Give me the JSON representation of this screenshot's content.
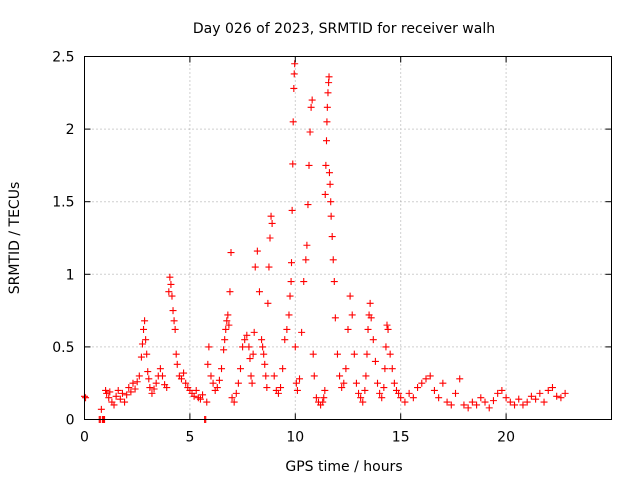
{
  "chart_data": {
    "type": "scatter",
    "title": "Day 026 of 2023, SRMTID for receiver walh",
    "xlabel": "GPS time / hours",
    "ylabel": "SRMTID / TECUs",
    "xlim": [
      0,
      25
    ],
    "ylim": [
      0,
      2.5
    ],
    "xticks": [
      0,
      5,
      10,
      15,
      20
    ],
    "xtick_labels": [
      "0",
      "5",
      "10",
      "15",
      "20"
    ],
    "yticks": [
      0,
      0.5,
      1,
      1.5,
      2,
      2.5
    ],
    "ytick_labels": [
      "0",
      "0.5",
      "1",
      "1.5",
      "2",
      "2.5"
    ],
    "grid": true,
    "marker": "+",
    "series": [
      {
        "name": "walh",
        "color": "#ff0000",
        "x": [
          0.0,
          0.05,
          0.7,
          0.75,
          0.8,
          0.85,
          0.9,
          0.95,
          1.0,
          1.05,
          1.15,
          1.2,
          1.3,
          1.4,
          1.5,
          1.6,
          1.7,
          1.8,
          1.9,
          2.0,
          2.1,
          2.2,
          2.3,
          2.4,
          2.5,
          2.6,
          2.7,
          2.75,
          2.8,
          2.85,
          2.9,
          2.95,
          3.0,
          3.05,
          3.1,
          3.2,
          3.3,
          3.4,
          3.5,
          3.6,
          3.7,
          3.8,
          3.9,
          4.0,
          4.05,
          4.1,
          4.15,
          4.2,
          4.25,
          4.3,
          4.35,
          4.4,
          4.5,
          4.6,
          4.7,
          4.8,
          4.9,
          5.0,
          5.1,
          5.2,
          5.3,
          5.4,
          5.5,
          5.6,
          5.7,
          5.75,
          5.8,
          5.85,
          5.9,
          6.0,
          6.1,
          6.2,
          6.3,
          6.4,
          6.5,
          6.6,
          6.65,
          6.7,
          6.75,
          6.8,
          6.85,
          6.9,
          6.95,
          7.0,
          7.1,
          7.2,
          7.3,
          7.4,
          7.5,
          7.6,
          7.7,
          7.8,
          7.85,
          7.9,
          7.95,
          8.0,
          8.05,
          8.1,
          8.2,
          8.3,
          8.4,
          8.45,
          8.5,
          8.55,
          8.6,
          8.65,
          8.7,
          8.75,
          8.8,
          8.85,
          8.9,
          9.0,
          9.1,
          9.2,
          9.3,
          9.4,
          9.5,
          9.6,
          9.7,
          9.75,
          9.8,
          9.82,
          9.85,
          9.88,
          9.9,
          9.93,
          9.95,
          9.97,
          10.0,
          10.05,
          10.1,
          10.2,
          10.3,
          10.4,
          10.5,
          10.55,
          10.6,
          10.65,
          10.7,
          10.75,
          10.8,
          10.85,
          10.9,
          11.0,
          11.1,
          11.2,
          11.3,
          11.35,
          11.4,
          11.42,
          11.45,
          11.48,
          11.5,
          11.52,
          11.55,
          11.58,
          11.6,
          11.62,
          11.65,
          11.68,
          11.7,
          11.75,
          11.8,
          11.85,
          11.9,
          12.0,
          12.1,
          12.2,
          12.3,
          12.4,
          12.5,
          12.6,
          12.7,
          12.8,
          12.9,
          13.0,
          13.1,
          13.2,
          13.3,
          13.35,
          13.4,
          13.45,
          13.5,
          13.55,
          13.6,
          13.7,
          13.8,
          13.9,
          14.0,
          14.1,
          14.2,
          14.25,
          14.3,
          14.35,
          14.4,
          14.5,
          14.6,
          14.7,
          14.8,
          14.9,
          15.0,
          15.2,
          15.4,
          15.6,
          15.8,
          16.0,
          16.2,
          16.4,
          16.6,
          16.8,
          17.0,
          17.2,
          17.4,
          17.6,
          17.8,
          18.0,
          18.2,
          18.4,
          18.6,
          18.8,
          19.0,
          19.2,
          19.4,
          19.6,
          19.8,
          20.0,
          20.2,
          20.4,
          20.6,
          20.8,
          21.0,
          21.2,
          21.4,
          21.6,
          21.8,
          22.0,
          22.2,
          22.4,
          22.6,
          22.8
        ],
        "y": [
          0.16,
          0.15,
          0.0,
          0.0,
          0.07,
          0.0,
          0.0,
          0.0,
          0.2,
          0.18,
          0.15,
          0.19,
          0.12,
          0.1,
          0.16,
          0.2,
          0.14,
          0.18,
          0.12,
          0.17,
          0.22,
          0.19,
          0.25,
          0.21,
          0.26,
          0.3,
          0.43,
          0.52,
          0.62,
          0.68,
          0.55,
          0.45,
          0.33,
          0.28,
          0.22,
          0.18,
          0.21,
          0.25,
          0.3,
          0.35,
          0.3,
          0.24,
          0.22,
          0.88,
          0.98,
          0.93,
          0.85,
          0.75,
          0.68,
          0.62,
          0.45,
          0.38,
          0.3,
          0.28,
          0.32,
          0.25,
          0.22,
          0.2,
          0.18,
          0.16,
          0.2,
          0.15,
          0.14,
          0.17,
          0.0,
          0.0,
          0.12,
          0.38,
          0.5,
          0.3,
          0.25,
          0.2,
          0.22,
          0.27,
          0.35,
          0.48,
          0.55,
          0.62,
          0.68,
          0.72,
          0.65,
          0.88,
          1.15,
          0.15,
          0.12,
          0.18,
          0.25,
          0.35,
          0.5,
          0.55,
          0.58,
          0.5,
          0.42,
          0.3,
          0.25,
          0.45,
          0.6,
          1.05,
          1.16,
          0.88,
          0.55,
          0.5,
          0.45,
          0.38,
          0.3,
          0.22,
          0.8,
          1.05,
          1.25,
          1.4,
          1.35,
          0.3,
          0.2,
          0.18,
          0.22,
          0.35,
          0.55,
          0.62,
          0.72,
          0.85,
          0.95,
          1.08,
          1.44,
          1.76,
          2.05,
          2.28,
          2.38,
          2.45,
          0.5,
          0.25,
          0.2,
          0.28,
          0.6,
          0.95,
          1.1,
          1.2,
          1.48,
          1.75,
          1.98,
          2.15,
          2.2,
          0.45,
          0.3,
          0.15,
          0.12,
          0.1,
          0.12,
          0.15,
          0.2,
          1.55,
          1.75,
          1.92,
          2.05,
          2.15,
          2.25,
          2.32,
          2.36,
          1.7,
          1.62,
          1.5,
          1.4,
          1.26,
          1.1,
          0.95,
          0.7,
          0.45,
          0.3,
          0.22,
          0.25,
          0.35,
          0.62,
          0.85,
          0.72,
          0.45,
          0.25,
          0.18,
          0.15,
          0.12,
          0.2,
          0.3,
          0.45,
          0.62,
          0.72,
          0.8,
          0.7,
          0.55,
          0.4,
          0.25,
          0.18,
          0.15,
          0.22,
          0.35,
          0.5,
          0.65,
          0.62,
          0.45,
          0.35,
          0.25,
          0.2,
          0.18,
          0.15,
          0.12,
          0.18,
          0.15,
          0.22,
          0.25,
          0.28,
          0.3,
          0.2,
          0.15,
          0.25,
          0.12,
          0.1,
          0.18,
          0.28,
          0.1,
          0.08,
          0.12,
          0.1,
          0.15,
          0.12,
          0.08,
          0.13,
          0.18,
          0.2,
          0.15,
          0.12,
          0.1,
          0.14,
          0.1,
          0.12,
          0.16,
          0.14,
          0.18,
          0.12,
          0.2,
          0.22,
          0.16,
          0.15,
          0.18
        ]
      }
    ]
  }
}
